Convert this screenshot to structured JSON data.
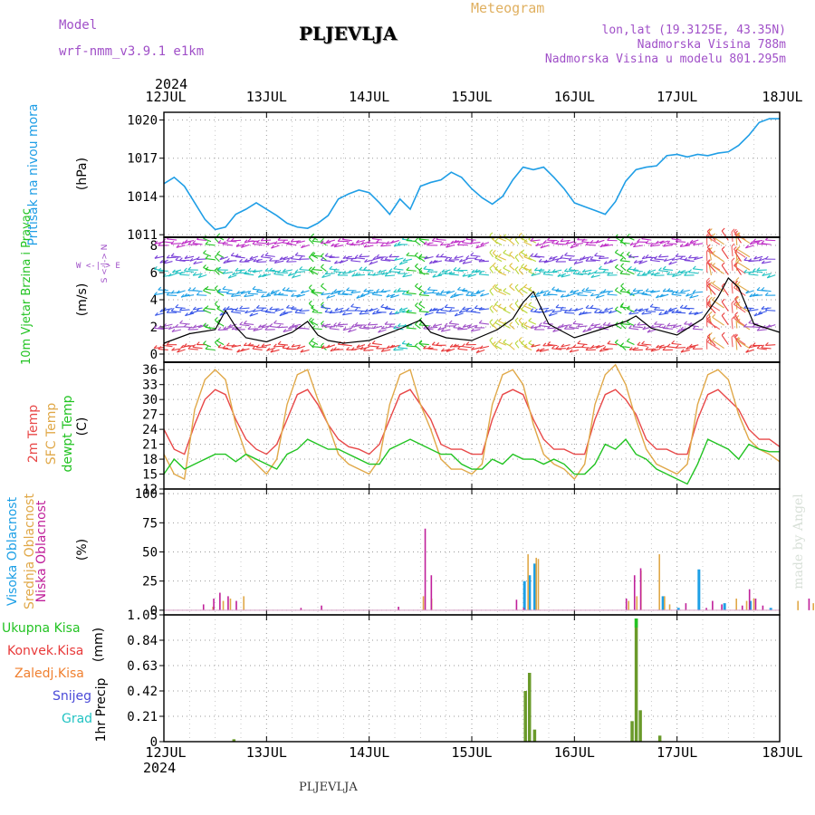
{
  "header": {
    "model_label": "Model",
    "model_name": "wrf-nmm_v3.9.1  e1km",
    "title": "PLJEVLJA",
    "meteogram_label": "Meteogram",
    "location": "lon,lat (19.3125E, 43.35N)",
    "elevation": "Nadmorska Visina 788m",
    "model_elevation": "Nadmorska Visina u modelu 801.295m"
  },
  "time_axis": {
    "year": "2024",
    "labels": [
      "12JUL",
      "13JUL",
      "14JUL",
      "15JUL",
      "16JUL",
      "17JUL",
      "18JUL"
    ]
  },
  "footer": {
    "station": "PLJEVLJA",
    "credit": "made by Angel"
  },
  "colors": {
    "pressure": "#1f9ee6",
    "temp2m": "#e84848",
    "sfc": "#e0a848",
    "dew": "#22c322",
    "cloud_high": "#1ea0e6",
    "cloud_mid": "#e0a848",
    "cloud_low": "#c0209a",
    "precip_total": "#23c323",
    "precip_conv": "#e83a3a",
    "precip_frozen": "#f08030",
    "snow": "#4a4ad8",
    "hail": "#22c3c3",
    "purple": "#a050c8"
  },
  "chart_data": [
    {
      "type": "line",
      "name": "pressure",
      "ylabel": "Pritisak na nivou mora",
      "unit": "(hPa)",
      "yticks": [
        1011,
        1014,
        1017,
        1020
      ],
      "ylim": [
        1010.8,
        1020.6
      ],
      "x": [
        0,
        0.1,
        0.2,
        0.3,
        0.4,
        0.5,
        0.6,
        0.7,
        0.8,
        0.9,
        1.0,
        1.1,
        1.2,
        1.3,
        1.4,
        1.5,
        1.6,
        1.7,
        1.8,
        1.9,
        2.0,
        2.1,
        2.2,
        2.3,
        2.4,
        2.5,
        2.6,
        2.7,
        2.8,
        2.9,
        3.0,
        3.1,
        3.2,
        3.3,
        3.4,
        3.5,
        3.6,
        3.7,
        3.8,
        3.9,
        4.0,
        4.1,
        4.2,
        4.3,
        4.4,
        4.5,
        4.6,
        4.7,
        4.8,
        4.9,
        5.0,
        5.1,
        5.2,
        5.3,
        5.4,
        5.5,
        5.6,
        5.7,
        5.8,
        5.9,
        6.0
      ],
      "values": [
        1015.0,
        1015.5,
        1014.8,
        1013.5,
        1012.2,
        1011.4,
        1011.6,
        1012.6,
        1013.0,
        1013.5,
        1013.0,
        1012.5,
        1011.9,
        1011.6,
        1011.5,
        1011.9,
        1012.5,
        1013.8,
        1014.2,
        1014.5,
        1014.3,
        1013.5,
        1012.6,
        1013.8,
        1013.0,
        1014.8,
        1015.1,
        1015.3,
        1015.9,
        1015.5,
        1014.6,
        1013.9,
        1013.4,
        1014.0,
        1015.3,
        1016.3,
        1016.1,
        1016.3,
        1015.5,
        1014.6,
        1013.5,
        1013.2,
        1012.9,
        1012.6,
        1013.6,
        1015.2,
        1016.1,
        1016.3,
        1016.4,
        1017.2,
        1017.3,
        1017.1,
        1017.3,
        1017.2,
        1017.4,
        1017.5,
        1018.0,
        1018.8,
        1019.8,
        1020.1,
        1020.1
      ]
    },
    {
      "type": "wind-barbs",
      "name": "wind",
      "ylabel": "10m Vjetar Brzina i Pravac",
      "unit": "(m/s)",
      "compass": "W <-|-> E",
      "compass_vertical": "S <-|-> N",
      "yticks": [
        0,
        2,
        4,
        6,
        8
      ],
      "ylim": [
        -0.6,
        8.6
      ],
      "x": [
        0,
        0.25,
        0.5,
        0.6,
        0.7,
        0.8,
        1.0,
        1.25,
        1.4,
        1.5,
        1.6,
        1.75,
        2.0,
        2.25,
        2.5,
        2.6,
        2.75,
        3.0,
        3.25,
        3.4,
        3.5,
        3.6,
        3.75,
        4.0,
        4.25,
        4.5,
        4.6,
        4.75,
        5.0,
        5.25,
        5.4,
        5.5,
        5.6,
        5.75,
        6.0
      ],
      "values": [
        0.8,
        1.5,
        1.8,
        3.2,
        2.0,
        1.2,
        0.9,
        1.6,
        2.4,
        1.4,
        1.0,
        0.8,
        1.0,
        1.7,
        2.5,
        1.6,
        1.2,
        1.0,
        1.8,
        2.6,
        3.8,
        4.6,
        2.2,
        1.2,
        1.8,
        2.4,
        2.8,
        1.9,
        1.4,
        2.6,
        4.2,
        5.6,
        4.9,
        2.2,
        1.6
      ]
    },
    {
      "type": "line",
      "name": "temperature",
      "ylabel": "2m Temp",
      "ylabel2": "SFC Temp",
      "ylabel3": "dewpt Temp",
      "unit": "(C)",
      "yticks": [
        12,
        15,
        18,
        21,
        24,
        27,
        30,
        33,
        36
      ],
      "ylim": [
        12,
        37.5
      ],
      "x": [
        0,
        0.1,
        0.2,
        0.3,
        0.4,
        0.5,
        0.6,
        0.7,
        0.8,
        0.9,
        1.0,
        1.1,
        1.2,
        1.3,
        1.4,
        1.5,
        1.6,
        1.7,
        1.8,
        1.9,
        2.0,
        2.1,
        2.2,
        2.3,
        2.4,
        2.5,
        2.6,
        2.7,
        2.8,
        2.9,
        3.0,
        3.1,
        3.2,
        3.3,
        3.4,
        3.5,
        3.6,
        3.7,
        3.8,
        3.9,
        4.0,
        4.1,
        4.2,
        4.3,
        4.4,
        4.5,
        4.6,
        4.7,
        4.8,
        4.9,
        5.0,
        5.1,
        5.2,
        5.3,
        5.4,
        5.5,
        5.6,
        5.7,
        5.8,
        5.9,
        6.0
      ],
      "series": [
        {
          "name": "2m Temp",
          "values": [
            24,
            20,
            19,
            25,
            30,
            32,
            31,
            26,
            22,
            20,
            19,
            21,
            26,
            31,
            32,
            29,
            25,
            22,
            20.5,
            20,
            19,
            21,
            26,
            31,
            32,
            29,
            26,
            21,
            20,
            20,
            19,
            19,
            26,
            31,
            32,
            31,
            26,
            22,
            20,
            20,
            19,
            19,
            26,
            31,
            32,
            30,
            27,
            22,
            20,
            20,
            19,
            19,
            26,
            31,
            32,
            30,
            28,
            24,
            22,
            22,
            20.5
          ]
        },
        {
          "name": "SFC Temp",
          "values": [
            19,
            15,
            14,
            28,
            34,
            36,
            34,
            25,
            19,
            17,
            15,
            18,
            29,
            35,
            36,
            30,
            25,
            19,
            17,
            16,
            15,
            18,
            29,
            35,
            36,
            29,
            24,
            18,
            16,
            16,
            15,
            17,
            29,
            35,
            36,
            33,
            25,
            19,
            17,
            16,
            14,
            17,
            29,
            35,
            37,
            33,
            26,
            20,
            17,
            16,
            15,
            17,
            29,
            35,
            36,
            34,
            27,
            22,
            20,
            19,
            17.5
          ]
        },
        {
          "name": "dewpt Temp",
          "values": [
            15,
            18,
            16,
            17,
            18,
            19,
            19,
            17.5,
            19,
            18,
            17,
            16,
            19,
            20,
            22,
            21,
            20,
            20,
            19,
            18,
            17,
            17,
            20,
            21,
            22,
            21,
            20,
            19,
            19,
            17,
            16,
            16,
            18,
            17,
            19,
            18,
            18,
            17,
            18,
            17,
            15,
            15,
            17,
            21,
            20,
            22,
            19,
            18,
            16,
            15,
            14,
            13,
            17,
            22,
            21,
            20,
            18,
            21,
            20,
            19.5,
            19.5
          ]
        }
      ]
    },
    {
      "type": "bar",
      "name": "clouds",
      "ylabel": "Visoka Oblacnost",
      "ylabel2": "Srednja Oblacnost",
      "ylabel3": "Niska Oblacnost",
      "unit": "(%)",
      "yticks": [
        0,
        25,
        50,
        75,
        100
      ],
      "ylim": [
        -4,
        104
      ],
      "series": [
        {
          "name": "Visoka Oblacnost",
          "x": [
            3.5,
            3.55,
            3.6,
            4.85,
            5.0,
            5.2,
            5.45,
            5.7,
            5.9
          ],
          "values": [
            25,
            30,
            40,
            12,
            2,
            35,
            6,
            8,
            2
          ]
        },
        {
          "name": "Srednja Oblacnost",
          "x": [
            0.45,
            0.55,
            0.62,
            0.75,
            2.5,
            2.58,
            3.52,
            3.6,
            3.62,
            4.5,
            4.58,
            4.62,
            4.8,
            4.85,
            4.9,
            5.55,
            5.65,
            5.72,
            6.15,
            6.3
          ],
          "values": [
            3,
            8,
            10,
            12,
            12,
            10,
            48,
            45,
            44,
            8,
            12,
            34,
            48,
            12,
            5,
            10,
            8,
            10,
            8,
            6
          ]
        },
        {
          "name": "Niska Oblacnost",
          "x": [
            0.4,
            0.5,
            0.56,
            0.64,
            0.72,
            1.35,
            1.55,
            2.3,
            2.56,
            2.62,
            3.45,
            3.52,
            4.52,
            4.6,
            4.66,
            5.1,
            5.3,
            5.36,
            5.45,
            5.65,
            5.72,
            5.78,
            5.85,
            6.3
          ],
          "values": [
            5,
            10,
            15,
            12,
            8,
            2,
            4,
            3,
            70,
            30,
            9,
            2,
            10,
            30,
            36,
            6,
            2,
            8,
            5,
            4,
            18,
            10,
            4,
            10
          ]
        }
      ]
    },
    {
      "type": "bar",
      "name": "precipitation",
      "ylabel": "1hr Precip",
      "unit": "(mm)",
      "legend": [
        "Ukupna Kisa",
        "Konvek.Kisa",
        "Zaledj.Kisa",
        "Snijeg",
        "Grad"
      ],
      "yticks": [
        0,
        0.21,
        0.42,
        0.63,
        0.84,
        1.05
      ],
      "ylim": [
        0,
        1.05
      ],
      "x": [
        0.68,
        3.52,
        3.56,
        3.61,
        4.56,
        4.6,
        4.64,
        4.83
      ],
      "values": [
        0.02,
        0.42,
        0.57,
        0.1,
        0.17,
        1.02,
        0.26,
        0.05
      ]
    }
  ]
}
